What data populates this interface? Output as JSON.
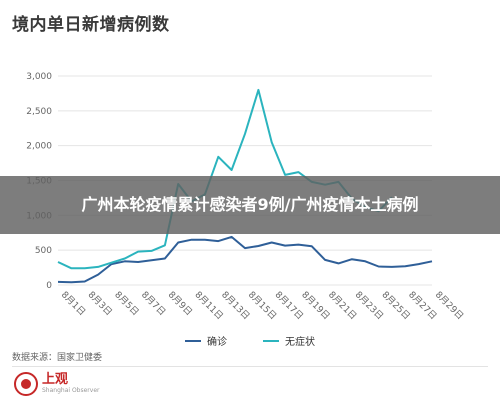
{
  "header": {
    "title": "境内单日新增病例数"
  },
  "overlay": {
    "text": "广州本轮疫情累计感染者9例/广州疫情本土病例"
  },
  "source": "数据来源：国家卫健委",
  "logo": {
    "name": "上观",
    "subtitle": "Shanghai Observer"
  },
  "colors": {
    "confirmed": "#2f5f98",
    "asymptomatic": "#2bb4be",
    "grid": "#e4e4e4",
    "axis": "#666666",
    "accent": "#c62828"
  },
  "chart_data": {
    "type": "line",
    "title": "境内单日新增病例数",
    "x": [
      "8月1日",
      "8月2日",
      "8月3日",
      "8月4日",
      "8月5日",
      "8月6日",
      "8月7日",
      "8月8日",
      "8月9日",
      "8月10日",
      "8月11日",
      "8月12日",
      "8月13日",
      "8月14日",
      "8月15日",
      "8月16日",
      "8月17日",
      "8月18日",
      "8月19日",
      "8月20日",
      "8月21日",
      "8月22日",
      "8月23日",
      "8月24日",
      "8月25日",
      "8月26日",
      "8月27日",
      "8月28日",
      "8月29日"
    ],
    "x_tick_labels": [
      "8月1日",
      "8月3日",
      "8月5日",
      "8月7日",
      "8月9日",
      "8月11日",
      "8月13日",
      "8月15日",
      "8月17日",
      "8月19日",
      "8月21日",
      "8月23日",
      "8月25日",
      "8月27日",
      "8月29日"
    ],
    "ylim": [
      0,
      3000
    ],
    "y_ticks": [
      "0",
      "500",
      "1,000",
      "1,500",
      "2,000",
      "2,500",
      "3,000"
    ],
    "grid": true,
    "legend": "bottom",
    "series": [
      {
        "name": "确诊",
        "color": "#2f5f98",
        "values": [
          45,
          40,
          50,
          150,
          300,
          340,
          330,
          355,
          380,
          610,
          650,
          650,
          630,
          690,
          530,
          560,
          610,
          565,
          580,
          555,
          360,
          310,
          370,
          340,
          265,
          260,
          270,
          300,
          340
        ]
      },
      {
        "name": "无症状",
        "color": "#2bb4be",
        "values": [
          330,
          240,
          240,
          260,
          320,
          380,
          480,
          490,
          570,
          1450,
          1200,
          1300,
          1840,
          1650,
          2170,
          2800,
          2050,
          1580,
          1620,
          1480,
          1440,
          1480,
          1240,
          1120,
          1060,
          1260,
          null,
          null,
          null
        ]
      }
    ]
  }
}
